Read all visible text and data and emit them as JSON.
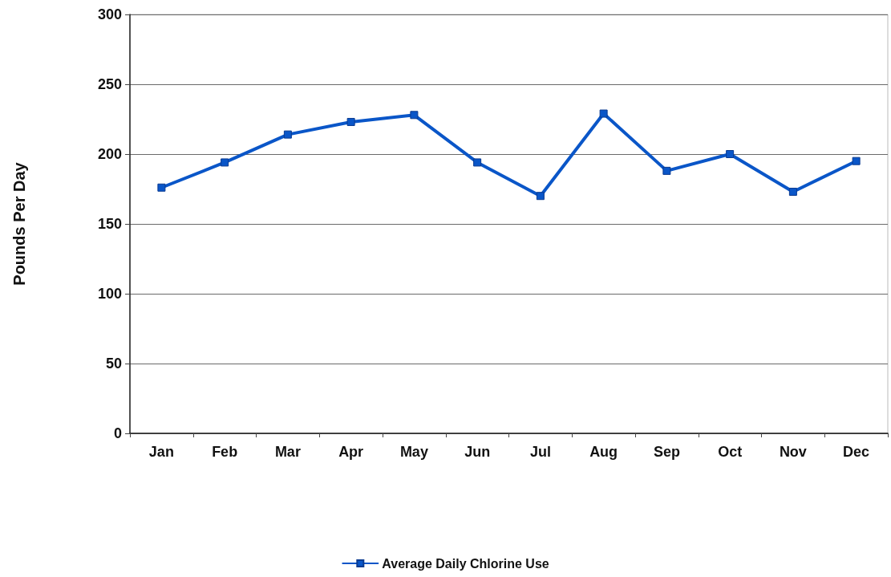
{
  "chart_data": {
    "type": "line",
    "ylabel": "Pounds Per Day",
    "categories": [
      "Jan",
      "Feb",
      "Mar",
      "Apr",
      "May",
      "Jun",
      "Jul",
      "Aug",
      "Sep",
      "Oct",
      "Nov",
      "Dec"
    ],
    "series": [
      {
        "name": "Average Daily Chlorine Use",
        "color": "#0a56c8",
        "values": [
          176,
          194,
          214,
          223,
          228,
          194,
          170,
          229,
          188,
          200,
          173,
          195
        ]
      }
    ],
    "ylim": [
      0,
      300
    ],
    "yticks": [
      0,
      50,
      100,
      150,
      200,
      250,
      300
    ],
    "grid": "y",
    "legend": "bottom",
    "marker": "square",
    "line_style": "solid"
  }
}
